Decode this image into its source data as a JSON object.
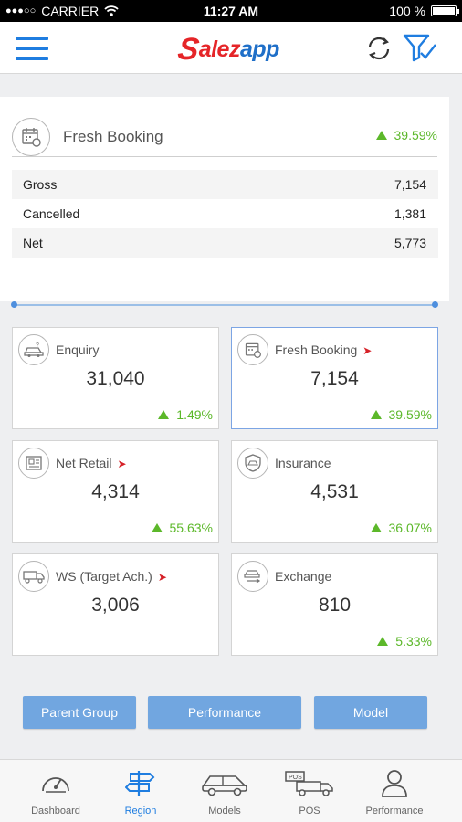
{
  "status_bar": {
    "signal": "●●●○○",
    "carrier": "CARRIER",
    "time": "11:27 AM",
    "battery": "100 %"
  },
  "header": {
    "logo_s": "S",
    "logo_text": "alez",
    "logo_app": "app",
    "menu_icon": "hamburger-icon",
    "refresh_icon": "refresh-icon",
    "filter_icon": "filter-check-icon",
    "accent": "#1f7de0",
    "brand_red": "#e52528"
  },
  "summary": {
    "icon": "calendar-booking-icon",
    "title": "Fresh Booking",
    "change": "39.59%",
    "rows": [
      {
        "label": "Gross",
        "value": "7,154"
      },
      {
        "label": "Cancelled",
        "value": "1,381"
      },
      {
        "label": "Net",
        "value": "5,773"
      }
    ]
  },
  "tiles": [
    {
      "label": "Enquiry",
      "value": "31,040",
      "change": "1.49%",
      "icon": "car-enquiry-icon",
      "arrow": false
    },
    {
      "label": "Fresh Booking",
      "value": "7,154",
      "change": "39.59%",
      "icon": "calendar-booking-icon",
      "arrow": true,
      "selected": true
    },
    {
      "label": "Net Retail",
      "value": "4,314",
      "change": "55.63%",
      "icon": "invoice-icon",
      "arrow": true
    },
    {
      "label": "Insurance",
      "value": "4,531",
      "change": "36.07%",
      "icon": "insurance-car-icon",
      "arrow": false
    },
    {
      "label": "WS (Target Ach.)",
      "value": "3,006",
      "change": "",
      "icon": "truck-icon",
      "arrow": true
    },
    {
      "label": "Exchange",
      "value": "810",
      "change": "5.33%",
      "icon": "exchange-car-icon",
      "arrow": false
    }
  ],
  "buttons": [
    {
      "label": "Parent Group"
    },
    {
      "label": "Performance"
    },
    {
      "label": "Model"
    }
  ],
  "nav": [
    {
      "label": "Dashboard",
      "icon": "speedometer-icon",
      "active": false
    },
    {
      "label": "Region",
      "icon": "signpost-icon",
      "active": true
    },
    {
      "label": "Models",
      "icon": "car-icon",
      "active": false
    },
    {
      "label": "POS",
      "icon": "pos-truck-icon",
      "active": false
    },
    {
      "label": "Performance",
      "icon": "person-icon",
      "active": false
    }
  ],
  "colors": {
    "positive": "#5cb82a",
    "button": "#71a6e0",
    "arrow": "#d62128"
  }
}
